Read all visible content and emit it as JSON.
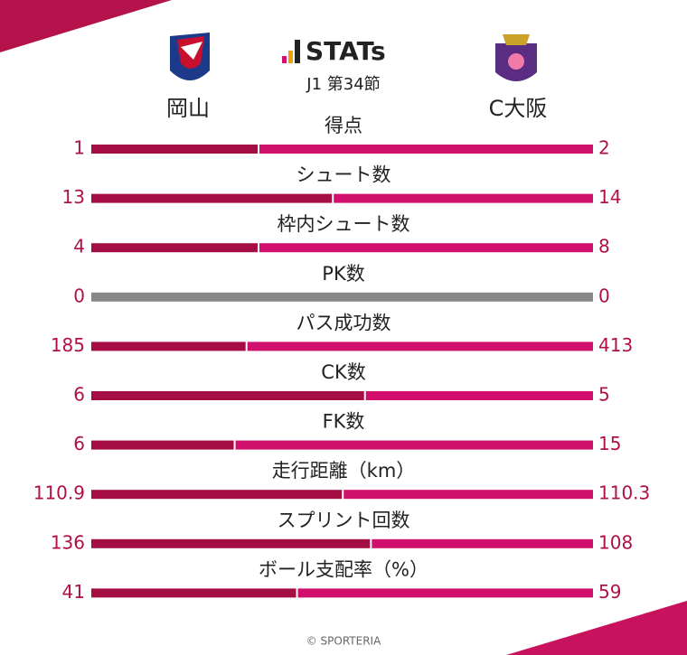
{
  "header": {
    "title": "STATs",
    "round": "J1 第34節",
    "home": "岡山",
    "away": "C大阪"
  },
  "stats": [
    {
      "label": "得点",
      "home": 1,
      "away": 2
    },
    {
      "label": "シュート数",
      "home": 13,
      "away": 14
    },
    {
      "label": "枠内シュート数",
      "home": 4,
      "away": 8
    },
    {
      "label": "PK数",
      "home": 0,
      "away": 0
    },
    {
      "label": "パス成功数",
      "home": 185,
      "away": 413
    },
    {
      "label": "CK数",
      "home": 6,
      "away": 5
    },
    {
      "label": "FK数",
      "home": 6,
      "away": 15
    },
    {
      "label": "走行距離（km）",
      "home": 110.9,
      "away": 110.3
    },
    {
      "label": "スプリント回数",
      "home": 136,
      "away": 108
    },
    {
      "label": "ボール支配率（%）",
      "home": 41,
      "away": 59
    }
  ],
  "footer": "© SPORTERIA"
}
